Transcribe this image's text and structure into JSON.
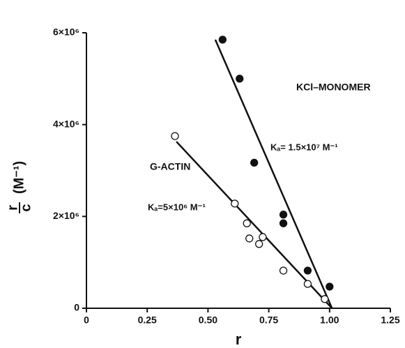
{
  "chart_data": {
    "type": "scatter",
    "x_label": "r",
    "y_label": {
      "numerator": "r",
      "denominator": "c",
      "unit": "(M⁻¹)"
    },
    "xlim": [
      0,
      1.25
    ],
    "xticks": [
      0,
      0.25,
      {
        "value": 0.5,
        "label": "0.50"
      },
      0.75,
      {
        "value": 1,
        "label": "1.00"
      },
      1.25
    ],
    "ylim": [
      0,
      6000000
    ],
    "yticks": [
      0,
      {
        "value": 2000000,
        "label": "2×10⁶"
      },
      {
        "value": 4000000,
        "label": "4×10⁶"
      },
      {
        "value": 6000000,
        "label": "6×10⁶"
      }
    ],
    "color": "#111111",
    "series": [
      {
        "name": "KCl–MONOMER",
        "marker": "filled",
        "annotation": "Kₐ= 1.5×10⁷ M⁻¹",
        "x": [
          0.56,
          0.63,
          0.69,
          0.81,
          0.81,
          0.91,
          1.0
        ],
        "values": [
          5850000,
          5000000,
          3170000,
          2040000,
          1850000,
          820000,
          470000
        ],
        "fit_x": [
          0.53,
          1.01
        ],
        "fit_y": [
          5850000,
          0
        ]
      },
      {
        "name": "G-ACTIN",
        "marker": "open",
        "annotation": "Kₐ=5×10⁶ M⁻¹",
        "x": [
          0.364,
          0.61,
          0.66,
          0.67,
          0.71,
          0.725,
          0.81,
          0.91,
          0.98
        ],
        "values": [
          3750000,
          2280000,
          1850000,
          1520000,
          1400000,
          1550000,
          820000,
          530000,
          200000
        ],
        "fit_x": [
          0.37,
          1.01
        ],
        "fit_y": [
          3630000,
          0
        ]
      }
    ]
  }
}
